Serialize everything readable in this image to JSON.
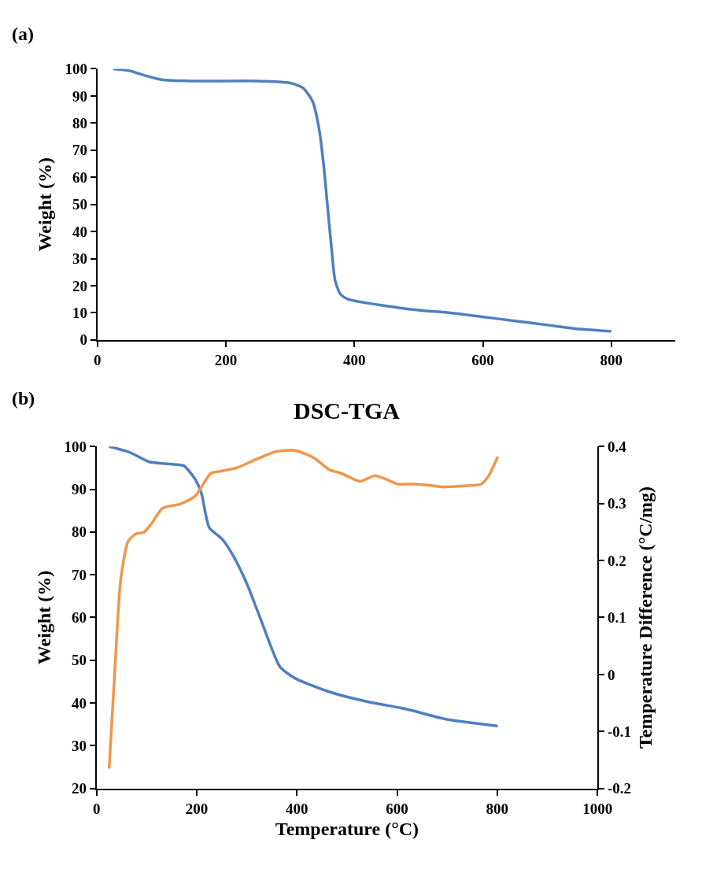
{
  "chart_data": [
    {
      "type": "line",
      "annotations": [
        "(a)"
      ],
      "ylabel": "Weight (%)",
      "xlim": [
        0,
        900
      ],
      "xticks": [
        0,
        200,
        400,
        600,
        800
      ],
      "ylim": [
        0,
        100
      ],
      "yticks": [
        0,
        10,
        20,
        30,
        40,
        50,
        60,
        70,
        80,
        90,
        100
      ],
      "grid": false,
      "marker": "none",
      "line_style": "solid",
      "x": [
        25,
        50,
        75,
        100,
        150,
        250,
        300,
        320,
        335,
        345,
        352,
        358,
        364,
        370,
        378,
        390,
        450,
        500,
        550,
        600,
        650,
        700,
        750,
        800
      ],
      "series": [
        {
          "color": "#4f7fc0",
          "values": [
            100,
            99.3,
            97.5,
            96,
            95.5,
            95.5,
            94.8,
            93,
            88,
            78,
            65,
            50,
            35,
            22,
            17,
            15,
            12.5,
            11,
            10,
            8.5,
            7,
            5.5,
            4,
            3.2
          ]
        }
      ]
    },
    {
      "type": "line",
      "title": "DSC-TGA",
      "annotations": [
        "(b)"
      ],
      "xlabel": "Temperature (°C)",
      "ylabel": "Weight (%)",
      "y2label": "Temperature Difference (°C/mg)",
      "xlim": [
        0,
        1000
      ],
      "xticks": [
        0,
        200,
        400,
        600,
        800,
        1000
      ],
      "ylim": [
        20,
        100
      ],
      "yticks": [
        20,
        30,
        40,
        50,
        60,
        70,
        80,
        90,
        100
      ],
      "y2lim": [
        -0.2,
        0.4
      ],
      "y2ticks": [
        -0.2,
        -0.1,
        0,
        0.1,
        0.2,
        0.3,
        0.4
      ],
      "grid": false,
      "marker": "none",
      "line_style": "solid",
      "series": [
        {
          "color": "#4f7fc0",
          "x": [
            25,
            67,
            105,
            174,
            182,
            197,
            209,
            225,
            251,
            274,
            300,
            327,
            366,
            396,
            465,
            541,
            618,
            694,
            801
          ],
          "values": [
            100,
            98.6,
            96.4,
            95.5,
            94.6,
            92.3,
            89.2,
            81,
            78.3,
            74.2,
            67.9,
            59.8,
            48.5,
            45.8,
            42.6,
            40.3,
            38.6,
            36.3,
            34.6
          ]
        },
        {
          "color": "#f0964a",
          "axis": "y2",
          "x": [
            25,
            37,
            48,
            63,
            79,
            94,
            109,
            132,
            167,
            197,
            228,
            251,
            281,
            320,
            358,
            396,
            434,
            465,
            488,
            526,
            556,
            579,
            602,
            633,
            664,
            691,
            733,
            768,
            783,
            801
          ],
          "values": [
            -0.165,
            0.017,
            0.166,
            0.234,
            0.247,
            0.249,
            0.264,
            0.292,
            0.299,
            0.313,
            0.353,
            0.357,
            0.363,
            0.378,
            0.391,
            0.393,
            0.38,
            0.359,
            0.353,
            0.339,
            0.349,
            0.342,
            0.334,
            0.334,
            0.332,
            0.329,
            0.331,
            0.334,
            0.349,
            0.382
          ]
        }
      ]
    }
  ]
}
